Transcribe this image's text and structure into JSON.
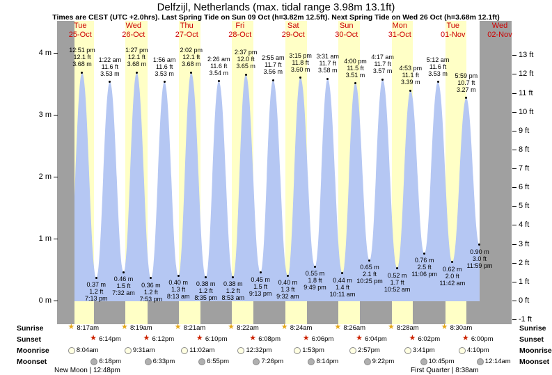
{
  "title": "Delfzijl, Netherlands (max. tidal range 3.98m 13.1ft)",
  "subtitle": "Times are CEST (UTC +2.0hrs). Last Spring Tide on Sun 09 Oct (h=3.82m 12.5ft). Next Spring Tide on Wed 26 Oct (h=3.68m 12.1ft)",
  "colors": {
    "day_band": "#ffffc6",
    "night_gap": "#ffffff",
    "no_data_gray": "#a0a0a0",
    "tide_fill": "#b5c7f3",
    "label_red": "#cc0000",
    "sunrise_star": "#e6a817",
    "sunset_star": "#cc2200",
    "moonrise_fill": "#ffffe2",
    "moonset_fill": "#b0b0b0"
  },
  "days": [
    {
      "name": "Tue",
      "date": "25-Oct"
    },
    {
      "name": "Wed",
      "date": "26-Oct"
    },
    {
      "name": "Thu",
      "date": "27-Oct"
    },
    {
      "name": "Fri",
      "date": "28-Oct"
    },
    {
      "name": "Sat",
      "date": "29-Oct"
    },
    {
      "name": "Sun",
      "date": "30-Oct"
    },
    {
      "name": "Mon",
      "date": "31-Oct"
    },
    {
      "name": "Tue",
      "date": "01-Nov"
    },
    {
      "name": "Wed",
      "date": "02-Nov"
    }
  ],
  "chart_data": {
    "type": "area",
    "series_name": "tide height",
    "axes": {
      "left_ticks_m": [
        0,
        1,
        2,
        3,
        4
      ],
      "left_unit": "m",
      "right_ticks_ft": [
        -1,
        0,
        1,
        2,
        3,
        4,
        5,
        6,
        7,
        8,
        9,
        10,
        11,
        12,
        13
      ],
      "right_unit": "ft",
      "ylim_m": [
        -0.5,
        4.6
      ]
    },
    "tide_events": [
      {
        "day": 0,
        "time": "12:51 pm",
        "height_m": 3.68,
        "height_ft": 12.1,
        "type": "high"
      },
      {
        "day": 0,
        "time": "7:13 pm",
        "height_m": 0.37,
        "height_ft": 1.2,
        "type": "low"
      },
      {
        "day": 1,
        "time": "1:22 am",
        "height_m": 3.53,
        "height_ft": 11.6,
        "type": "high"
      },
      {
        "day": 1,
        "time": "7:32 am",
        "height_m": 0.46,
        "height_ft": 1.5,
        "type": "low"
      },
      {
        "day": 1,
        "time": "1:27 pm",
        "height_m": 3.68,
        "height_ft": 12.1,
        "type": "high"
      },
      {
        "day": 1,
        "time": "7:53 pm",
        "height_m": 0.36,
        "height_ft": 1.2,
        "type": "low"
      },
      {
        "day": 2,
        "time": "1:56 am",
        "height_m": 3.53,
        "height_ft": 11.6,
        "type": "high"
      },
      {
        "day": 2,
        "time": "8:13 am",
        "height_m": 0.4,
        "height_ft": 1.3,
        "type": "low"
      },
      {
        "day": 2,
        "time": "2:02 pm",
        "height_m": 3.68,
        "height_ft": 12.1,
        "type": "high"
      },
      {
        "day": 2,
        "time": "8:35 pm",
        "height_m": 0.38,
        "height_ft": 1.2,
        "type": "low"
      },
      {
        "day": 3,
        "time": "2:26 am",
        "height_m": 3.54,
        "height_ft": 11.6,
        "type": "high"
      },
      {
        "day": 3,
        "time": "8:53 am",
        "height_m": 0.38,
        "height_ft": 1.2,
        "type": "low"
      },
      {
        "day": 3,
        "time": "2:37 pm",
        "height_m": 3.65,
        "height_ft": 12.0,
        "type": "high"
      },
      {
        "day": 3,
        "time": "9:13 pm",
        "height_m": 0.45,
        "height_ft": 1.5,
        "type": "low"
      },
      {
        "day": 4,
        "time": "2:55 am",
        "height_m": 3.56,
        "height_ft": 11.7,
        "type": "high"
      },
      {
        "day": 4,
        "time": "9:32 am",
        "height_m": 0.4,
        "height_ft": 1.3,
        "type": "low"
      },
      {
        "day": 4,
        "time": "3:15 pm",
        "height_m": 3.6,
        "height_ft": 11.8,
        "type": "high"
      },
      {
        "day": 4,
        "time": "9:49 pm",
        "height_m": 0.55,
        "height_ft": 1.8,
        "type": "low"
      },
      {
        "day": 5,
        "time": "3:31 am",
        "height_m": 3.58,
        "height_ft": 11.7,
        "type": "high"
      },
      {
        "day": 5,
        "time": "10:11 am",
        "height_m": 0.44,
        "height_ft": 1.4,
        "type": "low"
      },
      {
        "day": 5,
        "time": "4:00 pm",
        "height_m": 3.51,
        "height_ft": 11.5,
        "type": "high"
      },
      {
        "day": 5,
        "time": "10:25 pm",
        "height_m": 0.65,
        "height_ft": 2.1,
        "type": "low"
      },
      {
        "day": 6,
        "time": "4:17 am",
        "height_m": 3.57,
        "height_ft": 11.7,
        "type": "high"
      },
      {
        "day": 6,
        "time": "10:52 am",
        "height_m": 0.52,
        "height_ft": 1.7,
        "type": "low"
      },
      {
        "day": 6,
        "time": "4:53 pm",
        "height_m": 3.39,
        "height_ft": 11.1,
        "type": "high"
      },
      {
        "day": 6,
        "time": "11:06 pm",
        "height_m": 0.76,
        "height_ft": 2.5,
        "type": "low"
      },
      {
        "day": 7,
        "time": "5:12 am",
        "height_m": 3.53,
        "height_ft": 11.6,
        "type": "high"
      },
      {
        "day": 7,
        "time": "11:42 am",
        "height_m": 0.62,
        "height_ft": 2.0,
        "type": "low"
      },
      {
        "day": 7,
        "time": "5:59 pm",
        "height_m": 3.27,
        "height_ft": 10.7,
        "type": "high"
      },
      {
        "day": 7,
        "time": "11:59 pm",
        "height_m": 0.9,
        "height_ft": 3.0,
        "type": "low"
      }
    ]
  },
  "astro": {
    "row_labels": [
      "Sunrise",
      "Sunset",
      "Moonrise",
      "Moonset"
    ],
    "sunrise": [
      {
        "day": 0,
        "time": "8:17am"
      },
      {
        "day": 1,
        "time": "8:19am"
      },
      {
        "day": 2,
        "time": "8:21am"
      },
      {
        "day": 3,
        "time": "8:22am"
      },
      {
        "day": 4,
        "time": "8:24am"
      },
      {
        "day": 5,
        "time": "8:26am"
      },
      {
        "day": 6,
        "time": "8:28am"
      },
      {
        "day": 7,
        "time": "8:30am"
      }
    ],
    "sunset": [
      {
        "day": 0,
        "time": "6:14pm"
      },
      {
        "day": 1,
        "time": "6:12pm"
      },
      {
        "day": 2,
        "time": "6:10pm"
      },
      {
        "day": 3,
        "time": "6:08pm"
      },
      {
        "day": 4,
        "time": "6:06pm"
      },
      {
        "day": 5,
        "time": "6:04pm"
      },
      {
        "day": 6,
        "time": "6:02pm"
      },
      {
        "day": 7,
        "time": "6:00pm"
      }
    ],
    "moonrise": [
      {
        "day": 0,
        "time": "8:04am"
      },
      {
        "day": 1,
        "time": "9:31am"
      },
      {
        "day": 2,
        "time": "11:02am"
      },
      {
        "day": 3,
        "time": "12:32pm"
      },
      {
        "day": 4,
        "time": "1:53pm"
      },
      {
        "day": 5,
        "time": "2:57pm"
      },
      {
        "day": 6,
        "time": "3:41pm"
      },
      {
        "day": 7,
        "time": "4:10pm"
      }
    ],
    "moonset": [
      {
        "day": 0,
        "time": "6:18pm"
      },
      {
        "day": 1,
        "time": "6:33pm"
      },
      {
        "day": 2,
        "time": "6:55pm"
      },
      {
        "day": 3,
        "time": "7:26pm"
      },
      {
        "day": 4,
        "time": "8:14pm"
      },
      {
        "day": 5,
        "time": "9:22pm"
      },
      {
        "day": 6,
        "time": "10:45pm"
      },
      {
        "day": 8,
        "time": "12:14am"
      }
    ]
  },
  "moon_phases": [
    {
      "text": "New Moon | 12:48pm"
    },
    {
      "text": "First Quarter | 8:38am"
    }
  ]
}
